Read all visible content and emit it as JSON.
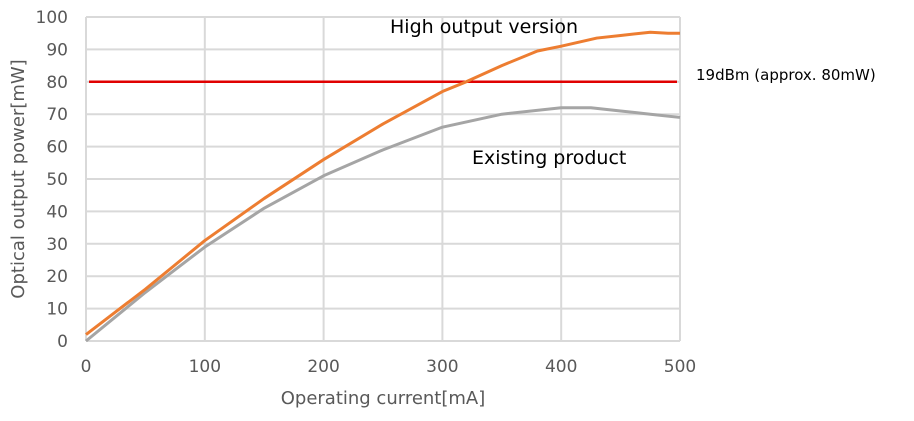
{
  "chart_data": {
    "type": "line",
    "xlabel": "Operating current[mA]",
    "ylabel": "Optical output power[mW]",
    "xlim": [
      0,
      500
    ],
    "ylim": [
      0,
      100
    ],
    "xticks": [
      0,
      100,
      200,
      300,
      400,
      500
    ],
    "yticks": [
      0,
      10,
      20,
      30,
      40,
      50,
      60,
      70,
      80,
      90,
      100
    ],
    "grid": true,
    "series": [
      {
        "name": "High output version",
        "color": "#ED7D31",
        "x": [
          0,
          25,
          50,
          75,
          100,
          150,
          200,
          250,
          300,
          320,
          350,
          380,
          400,
          430,
          450,
          475,
          490,
          500
        ],
        "y": [
          2,
          9,
          16,
          23.5,
          31,
          44,
          56,
          67,
          77,
          80,
          85,
          89.5,
          91,
          93.5,
          94.3,
          95.3,
          95,
          95
        ]
      },
      {
        "name": "Existing product",
        "color": "#A5A5A5",
        "x": [
          0,
          25,
          50,
          75,
          100,
          150,
          200,
          250,
          300,
          350,
          400,
          425,
          450,
          475,
          500
        ],
        "y": [
          0,
          7.5,
          15,
          22,
          29,
          41,
          51,
          59,
          66,
          70,
          72,
          72,
          71,
          70,
          69
        ]
      }
    ],
    "reference_line": {
      "label": "19dBm (approx. 80mW)",
      "y": 80,
      "color": "#E00000"
    },
    "annotations": [
      "High output version",
      "Existing product"
    ]
  }
}
